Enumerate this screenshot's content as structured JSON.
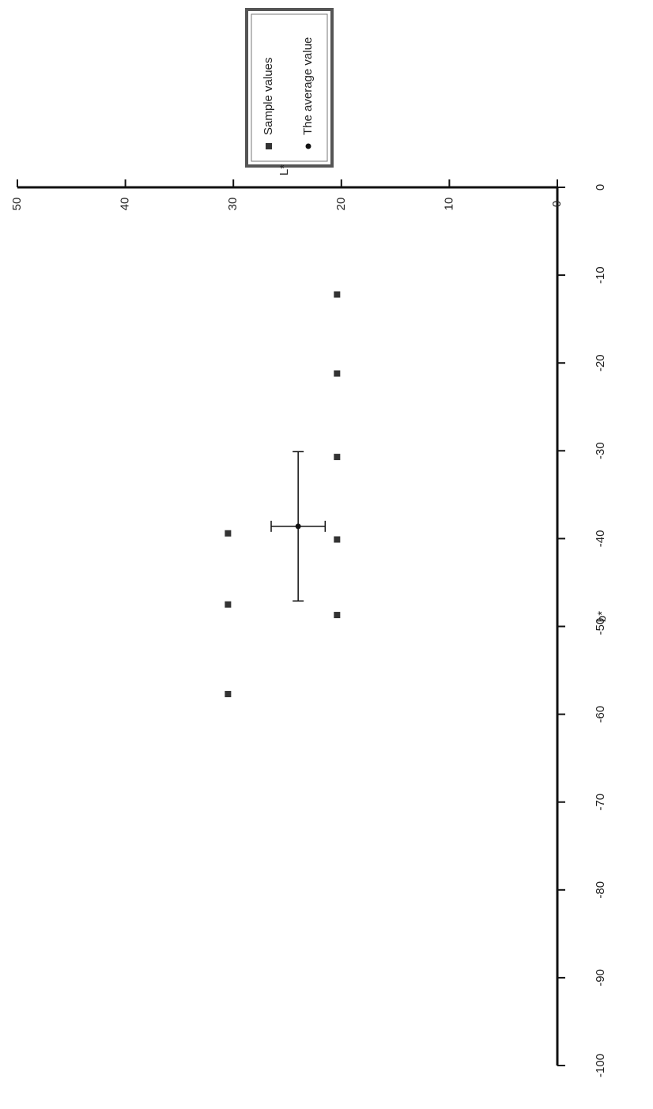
{
  "chart_data": {
    "type": "scatter",
    "x_label": "b*",
    "y_label": "L*",
    "xlim": [
      -100,
      0
    ],
    "ylim": [
      0,
      50
    ],
    "xticks": [
      -100,
      -90,
      -80,
      -70,
      -60,
      -50,
      -40,
      -30,
      -20,
      -10,
      0
    ],
    "yticks": [
      0,
      10,
      20,
      30,
      40,
      50
    ],
    "legend": "top-right",
    "series": [
      {
        "name": "Sample values",
        "color": "#333333",
        "marker": "square",
        "x": [
          -12.2,
          -21.2,
          -30.7,
          -40.1,
          -48.7,
          -39.4,
          -47.5,
          -57.7
        ],
        "values": [
          20.4,
          20.4,
          20.4,
          20.4,
          20.4,
          30.5,
          30.5,
          30.5
        ]
      },
      {
        "name": "The average value",
        "color": "#111111",
        "marker": "circle",
        "x": [
          -38.6
        ],
        "values": [
          24
        ],
        "xerr": [
          8.5
        ],
        "yerr": [
          2.5
        ]
      }
    ]
  }
}
